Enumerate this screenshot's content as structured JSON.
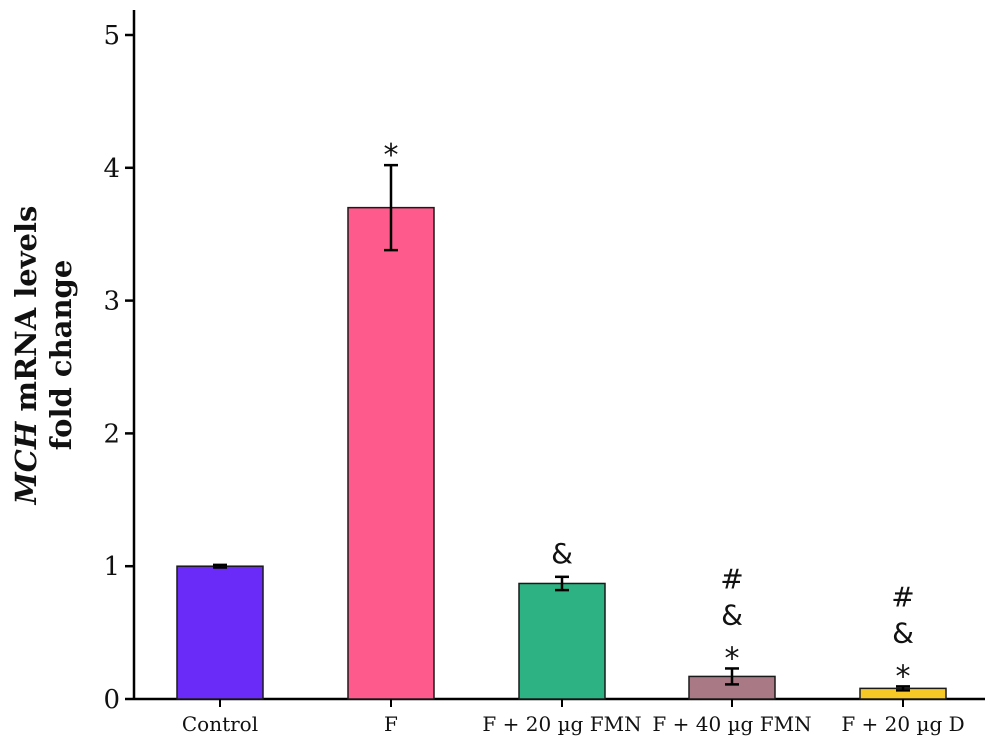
{
  "chart_data": {
    "type": "bar",
    "ylabel": {
      "italic": "MCH",
      "rest": " mRNA levels",
      "line2": "fold change"
    },
    "xlabel": "",
    "ylim": [
      0,
      5
    ],
    "yticks": [
      "0",
      "1",
      "2",
      "3",
      "4",
      "5"
    ],
    "grid": false,
    "categories": [
      "Control",
      "F",
      "F + 20 µg FMN",
      "F + 40 µg FMN",
      "F + 20 µg D"
    ],
    "values": [
      1.0,
      3.7,
      0.87,
      0.17,
      0.08
    ],
    "errors": [
      0.01,
      0.32,
      0.05,
      0.06,
      0.015
    ],
    "colors": [
      "#6a2af7",
      "#ff5a8c",
      "#2db383",
      "#a97a86",
      "#f6c927"
    ],
    "annotations": [
      [],
      [
        "*"
      ],
      [
        "&"
      ],
      [
        "#",
        "&",
        "*"
      ],
      [
        "#",
        "&",
        "*"
      ]
    ]
  }
}
